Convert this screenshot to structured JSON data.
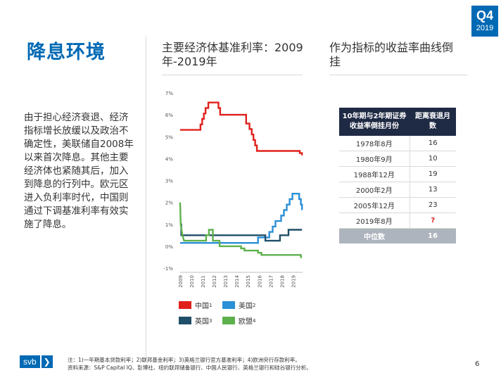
{
  "badge": {
    "quarter": "Q4",
    "year": "2019"
  },
  "page_title": "降息环境",
  "chart_title": "主要经济体基准利率：2009年-2019年",
  "table_title": "作为指标的收益率曲线倒挂",
  "body_text": "由于担心经济衰退、经济指标增长放缓以及政治不确定性，美联储自2008年以来首次降息。其他主要经济体也紧随其后，加入到降息的行列中。欧元区进入负利率时代，中国则通过下调基准利率有效实施了降息。",
  "table": {
    "headers": [
      "10年期与2年期证券收益率倒挂月份",
      "距离衰退月数"
    ],
    "rows": [
      {
        "date": "1978年8月",
        "months": "16"
      },
      {
        "date": "1980年9月",
        "months": "10"
      },
      {
        "date": "1988年12月",
        "months": "19"
      },
      {
        "date": "2000年2月",
        "months": "13"
      },
      {
        "date": "2005年12月",
        "months": "23"
      },
      {
        "date": "2019年8月",
        "months": "?"
      }
    ],
    "median_label": "中位数",
    "median_value": "16"
  },
  "legend": [
    {
      "label": "中国",
      "note": "1",
      "color": "#e0201b"
    },
    {
      "label": "美国",
      "note": "2",
      "color": "#2a8fd6"
    },
    {
      "label": "英国",
      "note": "3",
      "color": "#1f4e69"
    },
    {
      "label": "欧盟",
      "note": "4",
      "color": "#5db14c"
    }
  ],
  "footer": {
    "note": "注：1)一年期基本贷款利率；2)联邦基金利率；3)英格兰银行官方基准利率；4)欧洲央行存款利率。",
    "source": "资料来源：S&P Capital IQ、彭博社、纽约联邦储备银行、中国人民银行、英格兰银行和硅谷银行分析。"
  },
  "logo": {
    "text": "svb",
    "arrow": "❯"
  },
  "page_number": "6",
  "chart_data": {
    "type": "line",
    "title": "主要经济体基准利率：2009年-2019年",
    "y_tick_labels": [
      "7%",
      "6%",
      "5%",
      "4%",
      "3%",
      "2%",
      "1%",
      "0%",
      "-1%"
    ],
    "x_tick_labels": [
      "2009",
      "2010",
      "2011",
      "2012",
      "2013",
      "2014",
      "2015",
      "2016",
      "2017",
      "2018",
      "2019"
    ],
    "ylim": [
      -1,
      7
    ],
    "xlim": [
      2009.0,
      2019.85
    ],
    "series": [
      {
        "name": "中国",
        "color": "#e0201b",
        "points": [
          [
            2009.0,
            5.31
          ],
          [
            2010.8,
            5.31
          ],
          [
            2010.8,
            5.56
          ],
          [
            2010.95,
            5.56
          ],
          [
            2010.95,
            5.81
          ],
          [
            2011.1,
            5.81
          ],
          [
            2011.1,
            6.06
          ],
          [
            2011.25,
            6.06
          ],
          [
            2011.25,
            6.31
          ],
          [
            2011.5,
            6.31
          ],
          [
            2011.5,
            6.56
          ],
          [
            2012.4,
            6.56
          ],
          [
            2012.4,
            6.31
          ],
          [
            2012.55,
            6.31
          ],
          [
            2012.55,
            6.0
          ],
          [
            2014.85,
            6.0
          ],
          [
            2014.85,
            5.6
          ],
          [
            2015.15,
            5.6
          ],
          [
            2015.15,
            5.35
          ],
          [
            2015.35,
            5.35
          ],
          [
            2015.35,
            5.1
          ],
          [
            2015.5,
            5.1
          ],
          [
            2015.5,
            4.85
          ],
          [
            2015.65,
            4.85
          ],
          [
            2015.65,
            4.6
          ],
          [
            2015.8,
            4.6
          ],
          [
            2015.8,
            4.35
          ],
          [
            2019.6,
            4.35
          ],
          [
            2019.6,
            4.25
          ],
          [
            2019.8,
            4.25
          ],
          [
            2019.8,
            4.15
          ]
        ]
      },
      {
        "name": "美国",
        "color": "#2a8fd6",
        "points": [
          [
            2009.0,
            0.15
          ],
          [
            2015.9,
            0.15
          ],
          [
            2015.9,
            0.4
          ],
          [
            2016.9,
            0.4
          ],
          [
            2016.9,
            0.65
          ],
          [
            2017.2,
            0.65
          ],
          [
            2017.2,
            0.9
          ],
          [
            2017.45,
            0.9
          ],
          [
            2017.45,
            1.15
          ],
          [
            2017.95,
            1.15
          ],
          [
            2017.95,
            1.4
          ],
          [
            2018.2,
            1.4
          ],
          [
            2018.2,
            1.65
          ],
          [
            2018.45,
            1.65
          ],
          [
            2018.45,
            1.9
          ],
          [
            2018.7,
            1.9
          ],
          [
            2018.7,
            2.15
          ],
          [
            2018.95,
            2.15
          ],
          [
            2018.95,
            2.4
          ],
          [
            2019.55,
            2.4
          ],
          [
            2019.55,
            2.15
          ],
          [
            2019.7,
            2.15
          ],
          [
            2019.7,
            1.9
          ],
          [
            2019.8,
            1.9
          ],
          [
            2019.8,
            1.65
          ]
        ]
      },
      {
        "name": "英国",
        "color": "#1f4e69",
        "points": [
          [
            2009.0,
            1.0
          ],
          [
            2009.1,
            1.0
          ],
          [
            2009.1,
            0.5
          ],
          [
            2016.55,
            0.5
          ],
          [
            2016.55,
            0.25
          ],
          [
            2017.85,
            0.25
          ],
          [
            2017.85,
            0.5
          ],
          [
            2018.6,
            0.5
          ],
          [
            2018.6,
            0.75
          ],
          [
            2019.8,
            0.75
          ]
        ]
      },
      {
        "name": "欧盟",
        "color": "#5db14c",
        "points": [
          [
            2009.0,
            2.0
          ],
          [
            2009.05,
            1.0
          ],
          [
            2009.2,
            0.5
          ],
          [
            2009.35,
            0.25
          ],
          [
            2011.3,
            0.25
          ],
          [
            2011.3,
            0.5
          ],
          [
            2011.55,
            0.5
          ],
          [
            2011.55,
            0.75
          ],
          [
            2011.9,
            0.75
          ],
          [
            2011.9,
            0.25
          ],
          [
            2012.5,
            0.25
          ],
          [
            2012.5,
            0.0
          ],
          [
            2014.4,
            0.0
          ],
          [
            2014.4,
            -0.1
          ],
          [
            2014.7,
            -0.1
          ],
          [
            2014.7,
            -0.2
          ],
          [
            2015.9,
            -0.2
          ],
          [
            2015.9,
            -0.3
          ],
          [
            2016.2,
            -0.3
          ],
          [
            2016.2,
            -0.4
          ],
          [
            2019.7,
            -0.4
          ],
          [
            2019.7,
            -0.5
          ],
          [
            2019.8,
            -0.5
          ]
        ]
      }
    ]
  }
}
